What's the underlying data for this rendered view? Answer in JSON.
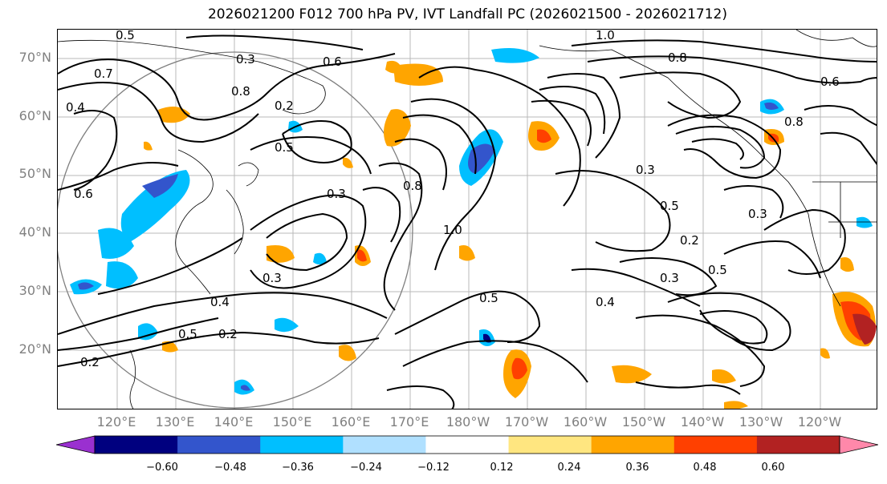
{
  "title": "2026021200 F012 700 hPa PV, IVT Landfall PC (2026021500 - 2026021712)",
  "lat_labels": [
    "70°N",
    "60°N",
    "50°N",
    "40°N",
    "30°N",
    "20°N"
  ],
  "lon_labels": [
    "120°E",
    "130°E",
    "140°E",
    "150°E",
    "160°E",
    "170°E",
    "180°W",
    "170°W",
    "160°W",
    "150°W",
    "140°W",
    "130°W",
    "120°W"
  ],
  "colorbar": {
    "ticks": [
      "−0.60",
      "−0.48",
      "−0.36",
      "−0.24",
      "−0.12",
      "0.12",
      "0.24",
      "0.36",
      "0.48",
      "0.60"
    ],
    "colors": [
      "#9a30d0",
      "#00007f",
      "#3355cc",
      "#00bfff",
      "#b0e0ff",
      "#ffffff",
      "#ffe680",
      "#ffa500",
      "#ff4000",
      "#b22222",
      "#ff88aa"
    ]
  },
  "contour_labels": [
    "0.5",
    "0.3",
    "0.6",
    "0.8",
    "0.7",
    "0.2",
    "0.4",
    "1.0",
    "0.5",
    "0.3",
    "0.8",
    "0.6",
    "0.4",
    "1.0",
    "0.3",
    "0.2",
    "0.5",
    "0.8",
    "0.3",
    "0.5",
    "0.4",
    "0.2",
    "0.5",
    "0.3",
    "0.6",
    "0.8",
    "0.3",
    "0.2",
    "0.5"
  ]
}
